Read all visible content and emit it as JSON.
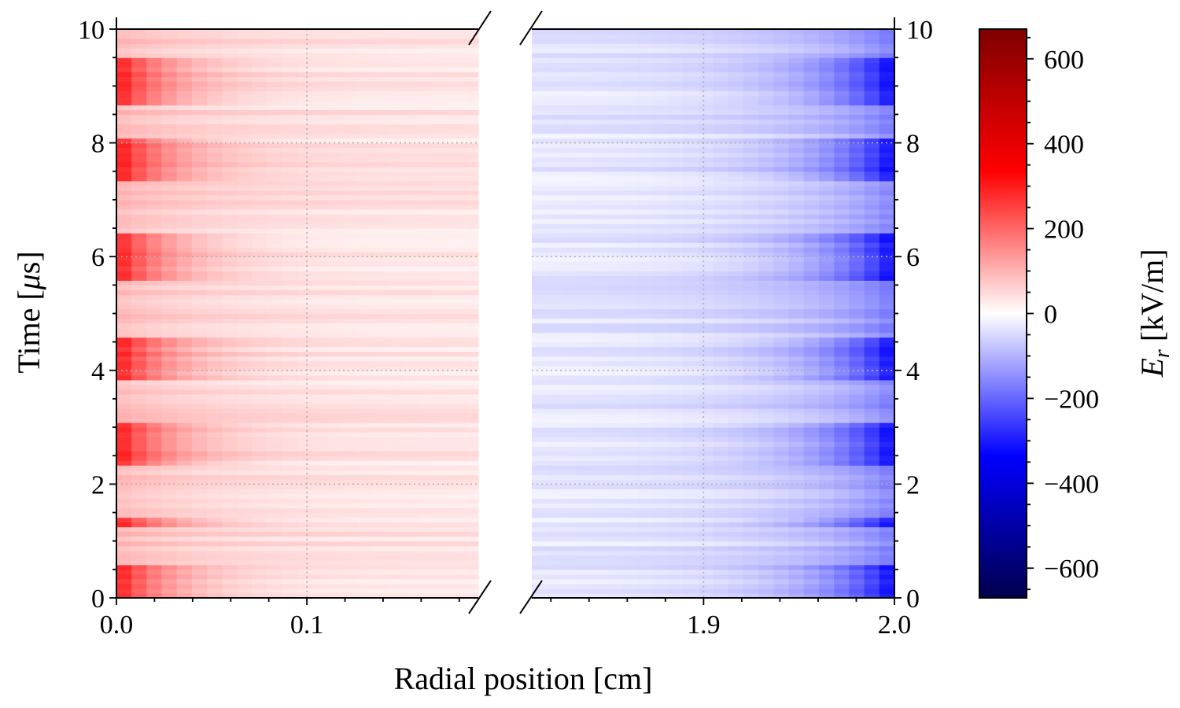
{
  "chart_data": {
    "type": "heatmap",
    "xlabel": "Radial position [cm]",
    "ylabel": "Time [μs]",
    "ylabel_main": "Time [",
    "ylabel_mu": "μ",
    "ylabel_tail": "s]",
    "colorbar_label": "E",
    "colorbar_label_sub": "r",
    "colorbar_label_tail": " [kV/m]",
    "left_panel": {
      "xlim": [
        0.0,
        0.19
      ],
      "xticks": [
        0.0,
        0.1
      ],
      "xtick_labels": [
        "0.0",
        "0.1"
      ]
    },
    "right_panel": {
      "xlim": [
        1.81,
        2.0
      ],
      "xticks": [
        1.9,
        2.0
      ],
      "xtick_labels": [
        "1.9",
        "2.0"
      ]
    },
    "ylim": [
      0,
      10
    ],
    "yticks": [
      0,
      2,
      4,
      6,
      8,
      10
    ],
    "ytick_labels": [
      "0",
      "2",
      "4",
      "6",
      "8",
      "10"
    ],
    "clim": [
      -670,
      670
    ],
    "colorbar_ticks": [
      -600,
      -400,
      -200,
      0,
      200,
      400,
      600
    ],
    "colorbar_tick_labels": [
      "−600",
      "−400",
      "−200",
      "0",
      "200",
      "400",
      "600"
    ],
    "colormap": [
      "#00004c",
      "#0000ff",
      "#ffffff",
      "#ff0000",
      "#7f0000"
    ],
    "grid": "dotted",
    "axis_break": true,
    "pulse_bands_us": [
      [
        0.0,
        0.55
      ],
      [
        1.22,
        1.42
      ],
      [
        2.3,
        3.05
      ],
      [
        3.85,
        4.6
      ],
      [
        5.6,
        6.45
      ],
      [
        7.35,
        8.05
      ],
      [
        8.65,
        9.5
      ]
    ],
    "field_peak_kV_per_m": {
      "inner_edge": 240,
      "outer_edge": -330
    }
  }
}
